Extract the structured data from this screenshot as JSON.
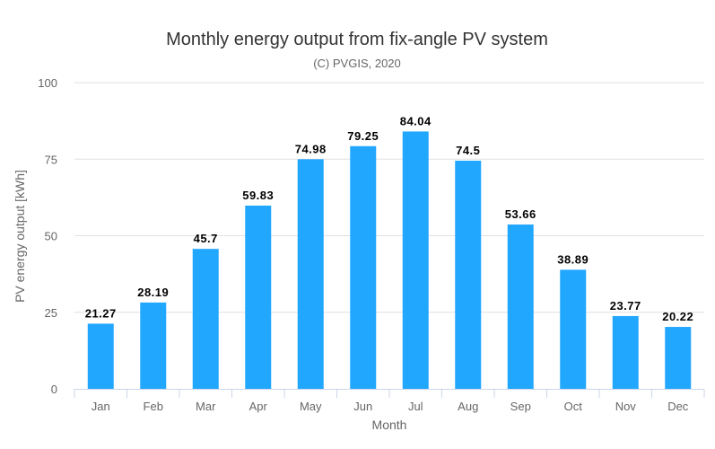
{
  "chart_data": {
    "type": "bar",
    "title": "Monthly energy output from fix-angle PV system",
    "subtitle": "(C) PVGIS, 2020",
    "xlabel": "Month",
    "ylabel": "PV energy output [kWh]",
    "categories": [
      "Jan",
      "Feb",
      "Mar",
      "Apr",
      "May",
      "Jun",
      "Jul",
      "Aug",
      "Sep",
      "Oct",
      "Nov",
      "Dec"
    ],
    "values": [
      21.27,
      28.19,
      45.7,
      59.83,
      74.98,
      79.25,
      84.04,
      74.5,
      53.66,
      38.89,
      23.77,
      20.22
    ],
    "data_labels": [
      "21.27",
      "28.19",
      "45.7",
      "59.83",
      "74.98",
      "79.25",
      "84.04",
      "74.5",
      "53.66",
      "38.89",
      "23.77",
      "20.22"
    ],
    "ylim": [
      0,
      100
    ],
    "yticks": [
      "0",
      "25",
      "50",
      "75",
      "100"
    ],
    "grid": true,
    "legend": "none",
    "bar_color": "#22a7ff"
  }
}
